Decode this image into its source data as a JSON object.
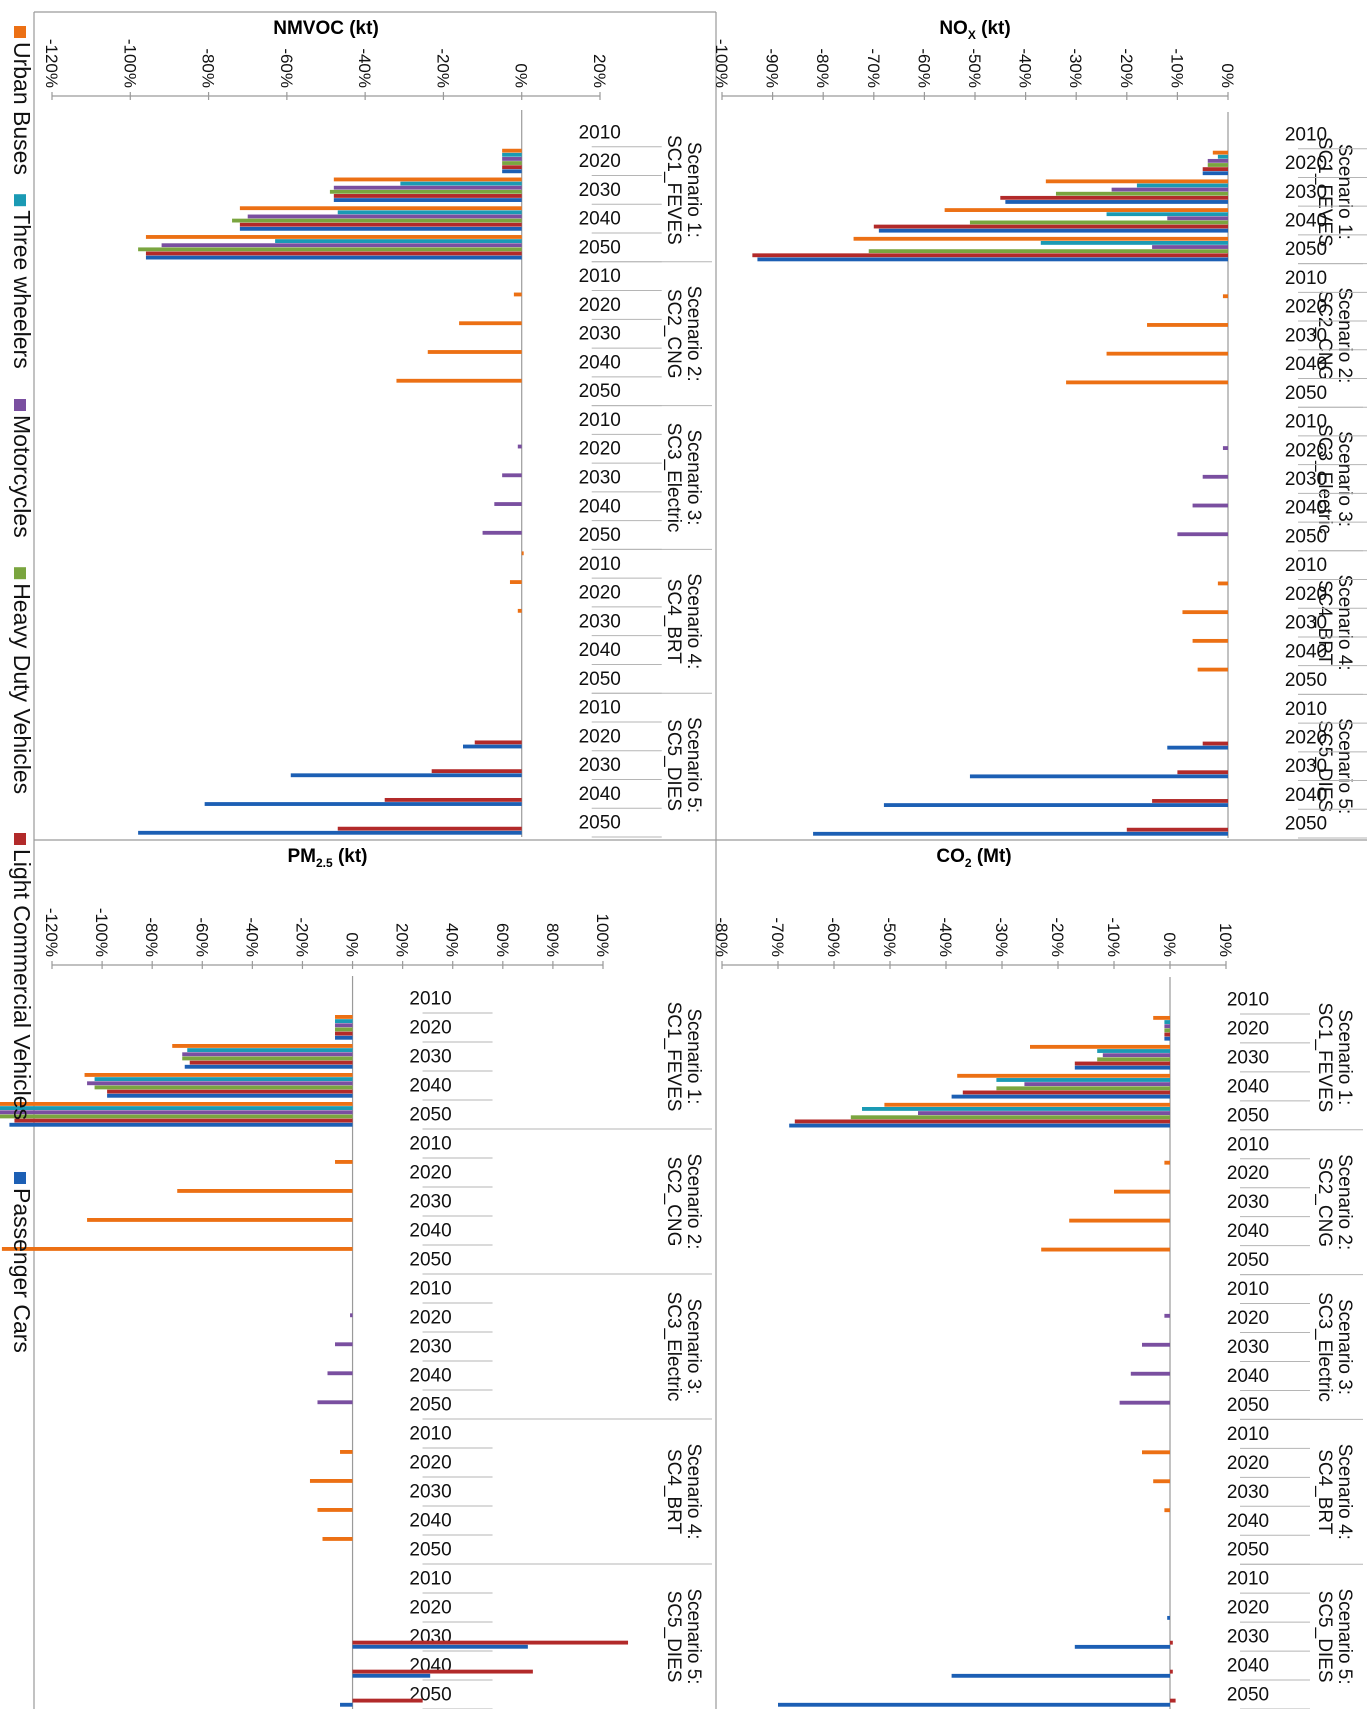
{
  "legend": [
    {
      "name": "Urban Buses",
      "color": "#ec7014"
    },
    {
      "name": "Three wheelers",
      "color": "#1a9ab4"
    },
    {
      "name": "Motorcycles",
      "color": "#7a4fa0"
    },
    {
      "name": "Heavy Duty Vehicles",
      "color": "#7aa53f"
    },
    {
      "name": "Light Commercial Vehicles",
      "color": "#b22a2a"
    },
    {
      "name": "Passenger Cars",
      "color": "#1c5fb4"
    }
  ],
  "scenarios": [
    {
      "line1": "Scenario 1:",
      "line2": "SC1_FEVES"
    },
    {
      "line1": "Scenario 2:",
      "line2": "SC2_CNG"
    },
    {
      "line1": "Scenario 3:",
      "line2": "SC3_Electric"
    },
    {
      "line1": "Scenario 4:",
      "line2": "SC4_BRT"
    },
    {
      "line1": "Scenario 5:",
      "line2": "SC5_DIES"
    }
  ],
  "years": [
    "2010",
    "2020",
    "2030",
    "2040",
    "2050"
  ],
  "chart_data": [
    {
      "id": "nmvoc",
      "type": "bar",
      "orientation": "horizontal",
      "title": "NMVOC (kt)",
      "title_main": "NMVOC (kt)",
      "title_sub": "",
      "title_tail": "",
      "xlim": [
        -120,
        20
      ],
      "ticks": [
        -120,
        -100,
        -80,
        -60,
        -40,
        -20,
        0,
        20
      ],
      "tick_labels": [
        "-120%",
        "-100%",
        "-80%",
        "-60%",
        "-40%",
        "-20%",
        "0%",
        "20%"
      ],
      "unit": "%",
      "series_order": [
        "Urban Buses",
        "Three wheelers",
        "Motorcycles",
        "Heavy Duty Vehicles",
        "Light Commercial Vehicles",
        "Passenger Cars"
      ],
      "values": {
        "Scenario 1": {
          "2010": [
            0,
            0,
            0,
            0,
            0,
            0
          ],
          "2020": [
            -5,
            -5,
            -5,
            -5,
            -5,
            -5
          ],
          "2030": [
            -48,
            -31,
            -48,
            -49,
            -48,
            -48
          ],
          "2040": [
            -72,
            -47,
            -70,
            -74,
            -72,
            -72
          ],
          "2050": [
            -96,
            -63,
            -92,
            -98,
            -96,
            -96
          ]
        },
        "Scenario 2": {
          "2010": [
            0,
            0,
            0,
            0,
            0,
            0
          ],
          "2020": [
            -2,
            0,
            0,
            0,
            0,
            0
          ],
          "2030": [
            -16,
            0,
            0,
            0,
            0,
            0
          ],
          "2040": [
            -24,
            0,
            0,
            0,
            0,
            0
          ],
          "2050": [
            -32,
            0,
            0,
            0,
            0,
            0
          ]
        },
        "Scenario 3": {
          "2010": [
            0,
            0,
            0,
            0,
            0,
            0
          ],
          "2020": [
            0,
            0,
            -1,
            0,
            0,
            0
          ],
          "2030": [
            0,
            0,
            -5,
            0,
            0,
            0
          ],
          "2040": [
            0,
            0,
            -7,
            0,
            0,
            0
          ],
          "2050": [
            0,
            0,
            -10,
            0,
            0,
            0
          ]
        },
        "Scenario 4": {
          "2010": [
            0.5,
            0,
            0,
            0,
            0,
            0
          ],
          "2020": [
            -3,
            0,
            0,
            0,
            0,
            0
          ],
          "2030": [
            -1,
            0,
            0,
            0,
            0,
            0
          ],
          "2040": [
            0,
            0,
            0,
            0,
            0,
            0
          ],
          "2050": [
            0,
            0,
            0,
            0,
            0,
            0
          ]
        },
        "Scenario 5": {
          "2010": [
            0,
            0,
            0,
            0,
            0,
            0
          ],
          "2020": [
            0,
            0,
            0,
            0,
            -12,
            -15
          ],
          "2030": [
            0,
            0,
            0,
            0,
            -23,
            -59
          ],
          "2040": [
            0,
            0,
            0,
            0,
            -35,
            -81
          ],
          "2050": [
            0,
            0,
            0,
            0,
            -47,
            -98
          ]
        }
      }
    },
    {
      "id": "nox",
      "type": "bar",
      "orientation": "horizontal",
      "title": "NOX (kt)",
      "title_main": "NO",
      "title_sub": "X",
      "title_tail": " (kt)",
      "xlim": [
        -100,
        0
      ],
      "ticks": [
        -100,
        -90,
        -80,
        -70,
        -60,
        -50,
        -40,
        -30,
        -20,
        -10,
        0
      ],
      "tick_labels": [
        "-100%",
        "-90%",
        "-80%",
        "-70%",
        "-60%",
        "-50%",
        "-40%",
        "-30%",
        "-20%",
        "-10%",
        "0%"
      ],
      "unit": "%",
      "series_order": [
        "Urban Buses",
        "Three wheelers",
        "Motorcycles",
        "Heavy Duty Vehicles",
        "Light Commercial Vehicles",
        "Passenger Cars"
      ],
      "values": {
        "Scenario 1": {
          "2010": [
            0,
            0,
            0,
            0,
            0,
            0
          ],
          "2020": [
            -3,
            -2,
            -4,
            -4,
            -5,
            -5
          ],
          "2030": [
            -36,
            -18,
            -23,
            -34,
            -45,
            -44
          ],
          "2040": [
            -56,
            -24,
            -12,
            -51,
            -70,
            -69
          ],
          "2050": [
            -74,
            -37,
            -15,
            -71,
            -94,
            -93
          ]
        },
        "Scenario 2": {
          "2010": [
            0,
            0,
            0,
            0,
            0,
            0
          ],
          "2020": [
            -1,
            0,
            0,
            0,
            0,
            0
          ],
          "2030": [
            -16,
            0,
            0,
            0,
            0,
            0
          ],
          "2040": [
            -24,
            0,
            0,
            0,
            0,
            0
          ],
          "2050": [
            -32,
            0,
            0,
            0,
            0,
            0
          ]
        },
        "Scenario 3": {
          "2010": [
            0,
            0,
            0,
            0,
            0,
            0
          ],
          "2020": [
            0,
            0,
            -1,
            0,
            0,
            0
          ],
          "2030": [
            0,
            0,
            -5,
            0,
            0,
            0
          ],
          "2040": [
            0,
            0,
            -7,
            0,
            0,
            0
          ],
          "2050": [
            0,
            0,
            -10,
            0,
            0,
            0
          ]
        },
        "Scenario 4": {
          "2010": [
            0,
            0,
            0,
            0,
            0,
            0
          ],
          "2020": [
            -2,
            0,
            0,
            0,
            0,
            0
          ],
          "2030": [
            -9,
            0,
            0,
            0,
            0,
            0
          ],
          "2040": [
            -7,
            0,
            0,
            0,
            0,
            0
          ],
          "2050": [
            -6,
            0,
            0,
            0,
            0,
            0
          ]
        },
        "Scenario 5": {
          "2010": [
            0,
            0,
            0,
            0,
            0,
            0
          ],
          "2020": [
            0,
            0,
            0,
            0,
            -5,
            -12
          ],
          "2030": [
            0,
            0,
            0,
            0,
            -10,
            -51
          ],
          "2040": [
            0,
            0,
            0,
            0,
            -15,
            -68
          ],
          "2050": [
            0,
            0,
            0,
            0,
            -20,
            -82
          ]
        }
      }
    },
    {
      "id": "pm25",
      "type": "bar",
      "orientation": "horizontal",
      "title": "PM2.5 (kt)",
      "title_main": "PM",
      "title_sub": "2.5",
      "title_tail": " (kt)",
      "xlim": [
        -120,
        100
      ],
      "ticks": [
        -120,
        -100,
        -80,
        -60,
        -40,
        -20,
        0,
        20,
        40,
        60,
        80,
        100
      ],
      "tick_labels": [
        "-120%",
        "-100%",
        "-80%",
        "-60%",
        "-40%",
        "-20%",
        "0%",
        "20%",
        "40%",
        "60%",
        "80%",
        "100%"
      ],
      "unit": "%",
      "series_order": [
        "Urban Buses",
        "Three wheelers",
        "Motorcycles",
        "Heavy Duty Vehicles",
        "Light Commercial Vehicles",
        "Passenger Cars"
      ],
      "values": {
        "Scenario 1": {
          "2010": [
            0,
            0,
            0,
            0,
            0,
            0
          ],
          "2020": [
            -7,
            -7,
            -7,
            -7,
            -7,
            -7
          ],
          "2030": [
            -72,
            -66,
            -68,
            -68,
            -65,
            -67
          ],
          "2040": [
            -107,
            -103,
            -106,
            -103,
            -98,
            -98
          ],
          "2050": [
            -146,
            -141,
            -147,
            -142,
            -135,
            -137
          ]
        },
        "Scenario 2": {
          "2010": [
            0,
            0,
            0,
            0,
            0,
            0
          ],
          "2020": [
            -7,
            0,
            0,
            0,
            0,
            0
          ],
          "2030": [
            -70,
            0,
            0,
            0,
            0,
            0
          ],
          "2040": [
            -106,
            0,
            0,
            0,
            0,
            0
          ],
          "2050": [
            -140,
            0,
            0,
            0,
            0,
            0
          ]
        },
        "Scenario 3": {
          "2010": [
            0,
            0,
            0,
            0,
            0,
            0
          ],
          "2020": [
            0,
            0,
            -1,
            0,
            0,
            0
          ],
          "2030": [
            0,
            0,
            -7,
            0,
            0,
            0
          ],
          "2040": [
            0,
            0,
            -10,
            0,
            0,
            0
          ],
          "2050": [
            0,
            0,
            -14,
            0,
            0,
            0
          ]
        },
        "Scenario 4": {
          "2010": [
            0,
            0,
            0,
            0,
            0,
            0
          ],
          "2020": [
            -5,
            0,
            0,
            0,
            0,
            0
          ],
          "2030": [
            -17,
            0,
            0,
            0,
            0,
            0
          ],
          "2040": [
            -14,
            0,
            0,
            0,
            0,
            0
          ],
          "2050": [
            -12,
            0,
            0,
            0,
            0,
            0
          ]
        },
        "Scenario 5": {
          "2010": [
            0,
            0,
            0,
            0,
            0,
            0
          ],
          "2020": [
            0,
            0,
            0,
            0,
            0,
            0
          ],
          "2030": [
            0,
            0,
            0,
            0,
            110,
            70
          ],
          "2040": [
            0,
            0,
            0,
            0,
            72,
            31
          ],
          "2050": [
            0,
            0,
            0,
            0,
            28,
            -5
          ]
        }
      }
    },
    {
      "id": "co2",
      "type": "bar",
      "orientation": "horizontal",
      "title": "CO2 (Mt)",
      "title_main": "CO",
      "title_sub": "2",
      "title_tail": " (Mt)",
      "xlim": [
        -80,
        10
      ],
      "ticks": [
        -80,
        -70,
        -60,
        -50,
        -40,
        -30,
        -20,
        -10,
        0,
        10
      ],
      "tick_labels": [
        "-80%",
        "-70%",
        "-60%",
        "-50%",
        "-40%",
        "-30%",
        "-20%",
        "-10%",
        "0%",
        "10%"
      ],
      "unit": "%",
      "series_order": [
        "Urban Buses",
        "Three wheelers",
        "Motorcycles",
        "Heavy Duty Vehicles",
        "Light Commercial Vehicles",
        "Passenger Cars"
      ],
      "values": {
        "Scenario 1": {
          "2010": [
            0,
            0,
            0,
            0,
            0,
            0
          ],
          "2020": [
            -3,
            -1,
            -1,
            -1,
            -1,
            -1
          ],
          "2030": [
            -25,
            -13,
            -12,
            -13,
            -17,
            -17
          ],
          "2040": [
            -38,
            -31,
            -26,
            -31,
            -37,
            -39
          ],
          "2050": [
            -51,
            -55,
            -45,
            -57,
            -67,
            -68
          ]
        },
        "Scenario 2": {
          "2010": [
            0,
            0,
            0,
            0,
            0,
            0
          ],
          "2020": [
            -1,
            0,
            0,
            0,
            0,
            0
          ],
          "2030": [
            -10,
            0,
            0,
            0,
            0,
            0
          ],
          "2040": [
            -18,
            0,
            0,
            0,
            0,
            0
          ],
          "2050": [
            -23,
            0,
            0,
            0,
            0,
            0
          ]
        },
        "Scenario 3": {
          "2010": [
            0,
            0,
            0,
            0,
            0,
            0
          ],
          "2020": [
            0,
            0,
            -1,
            0,
            0,
            0
          ],
          "2030": [
            0,
            0,
            -5,
            0,
            0,
            0
          ],
          "2040": [
            0,
            0,
            -7,
            0,
            0,
            0
          ],
          "2050": [
            0,
            0,
            -9,
            0,
            0,
            0
          ]
        },
        "Scenario 4": {
          "2010": [
            0,
            0,
            0,
            0,
            0,
            0
          ],
          "2020": [
            -5,
            0,
            0,
            0,
            0,
            0
          ],
          "2030": [
            -3,
            0,
            0,
            0,
            0,
            0
          ],
          "2040": [
            -1,
            0,
            0,
            0,
            0,
            0
          ],
          "2050": [
            0,
            0,
            0,
            0,
            0,
            0
          ]
        },
        "Scenario 5": {
          "2010": [
            0,
            0,
            0,
            0,
            0,
            0
          ],
          "2020": [
            0,
            0,
            0,
            0,
            0,
            -0.5
          ],
          "2030": [
            0,
            0,
            0,
            0,
            0.5,
            -17
          ],
          "2040": [
            0,
            0,
            0,
            0,
            0.5,
            -39
          ],
          "2050": [
            0,
            0,
            0,
            0,
            1,
            -70
          ]
        }
      }
    }
  ]
}
